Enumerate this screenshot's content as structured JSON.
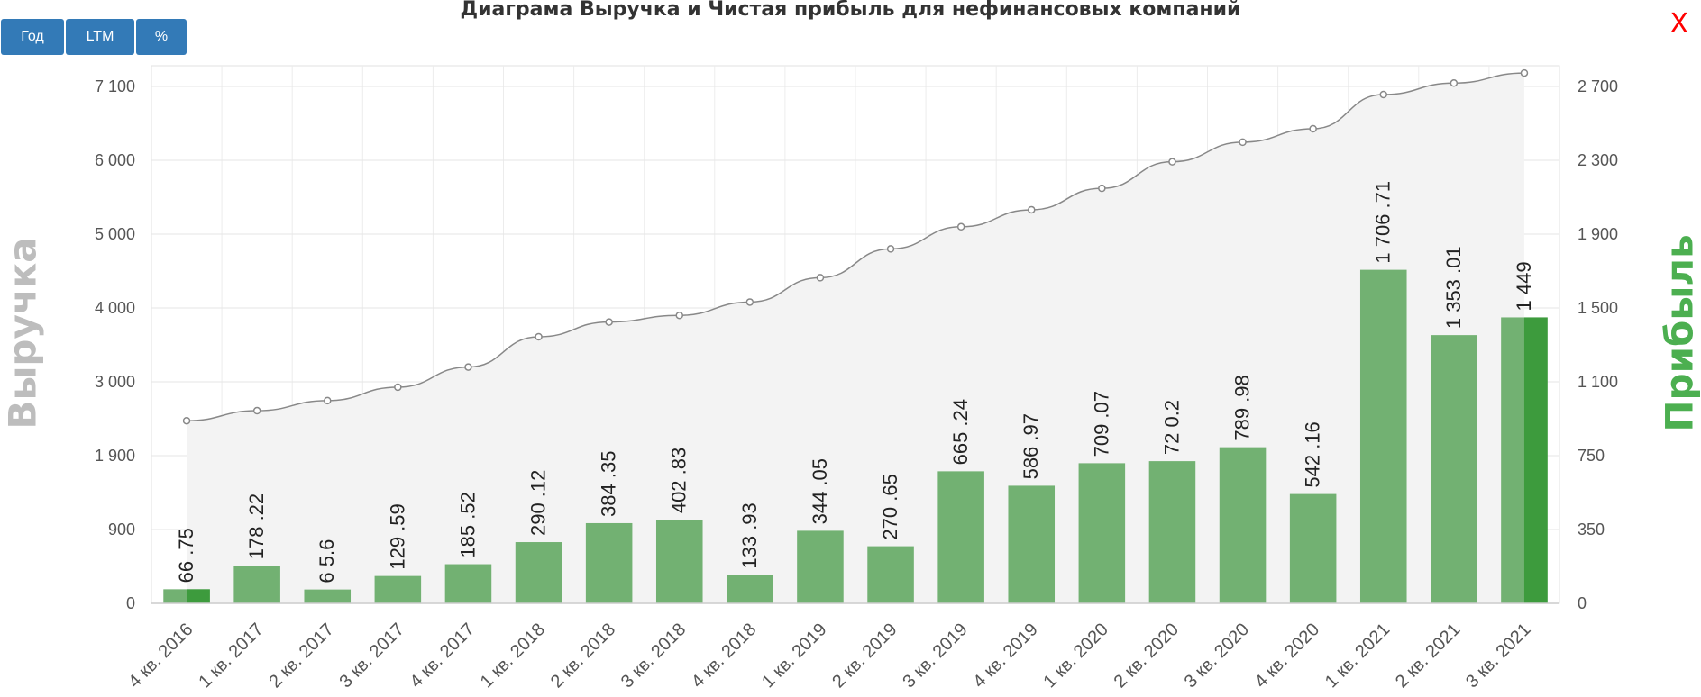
{
  "header": {
    "title": "Диаграма Выручка и Чистая прибыль для нефинансовых компаний",
    "close_label": "X"
  },
  "toolbar": {
    "buttons": [
      "Год",
      "LTM",
      "%"
    ]
  },
  "colors": {
    "button": "#337ab7",
    "close": "#ff0000",
    "bar": "#72b172",
    "bar_highlight": "#3d9b3d",
    "area_fill": "#f3f3f3",
    "line": "#888888",
    "left_title": "#bdbdbd",
    "right_title": "#4caf50"
  },
  "chart_data": {
    "type": "bar",
    "categories": [
      "4 кв. 2016",
      "1 кв. 2017",
      "2 кв. 2017",
      "3 кв. 2017",
      "4 кв. 2017",
      "1 кв. 2018",
      "2 кв. 2018",
      "3 кв. 2018",
      "4 кв. 2018",
      "1 кв. 2019",
      "2 кв. 2019",
      "3 кв. 2019",
      "4 кв. 2019",
      "1 кв. 2020",
      "2 кв. 2020",
      "3 кв. 2020",
      "4 кв. 2020",
      "1 кв. 2021",
      "2 кв. 2021",
      "3 кв. 2021"
    ],
    "left_axis": {
      "title": "Выручка",
      "ticks": [
        "0",
        "900",
        "1 900",
        "3 000",
        "4 000",
        "5 000",
        "6 000",
        "7 100"
      ]
    },
    "right_axis": {
      "title": "Прибыль",
      "ticks": [
        "0",
        "350",
        "750",
        "1 100",
        "1 500",
        "1 900",
        "2 300",
        "2 700"
      ]
    },
    "series": [
      {
        "type": "area",
        "axis": "left",
        "values": [
          2420,
          2570,
          2720,
          2920,
          3200,
          3610,
          3810,
          3900,
          4080,
          4410,
          4800,
          5100,
          5330,
          5620,
          5980,
          6270,
          6470,
          6980,
          7150,
          7300
        ]
      },
      {
        "type": "bar",
        "axis": "right",
        "values": [
          66.75,
          178.22,
          65.6,
          129.59,
          185.52,
          290.12,
          384.35,
          402.83,
          133.93,
          344.05,
          270.65,
          665.24,
          586.97,
          709.07,
          720.2,
          789.98,
          542.16,
          1706.71,
          1353.01,
          1449
        ],
        "labels": [
          "66 .75",
          "178 .22",
          "6 5.6",
          "129 .59",
          "185 .52",
          "290 .12",
          "384 .35",
          "402 .83",
          "133 .93",
          "344 .05",
          "270 .65",
          "665 .24",
          "586 .97",
          "709 .07",
          "72 0.2",
          "789 .98",
          "542 .16",
          "1 706 .71",
          "1 353 .01",
          "1 449"
        ]
      }
    ],
    "highlighted": [
      "4 кв. 2016",
      "3 кв. 2021"
    ],
    "grid": true,
    "legend": "none"
  }
}
